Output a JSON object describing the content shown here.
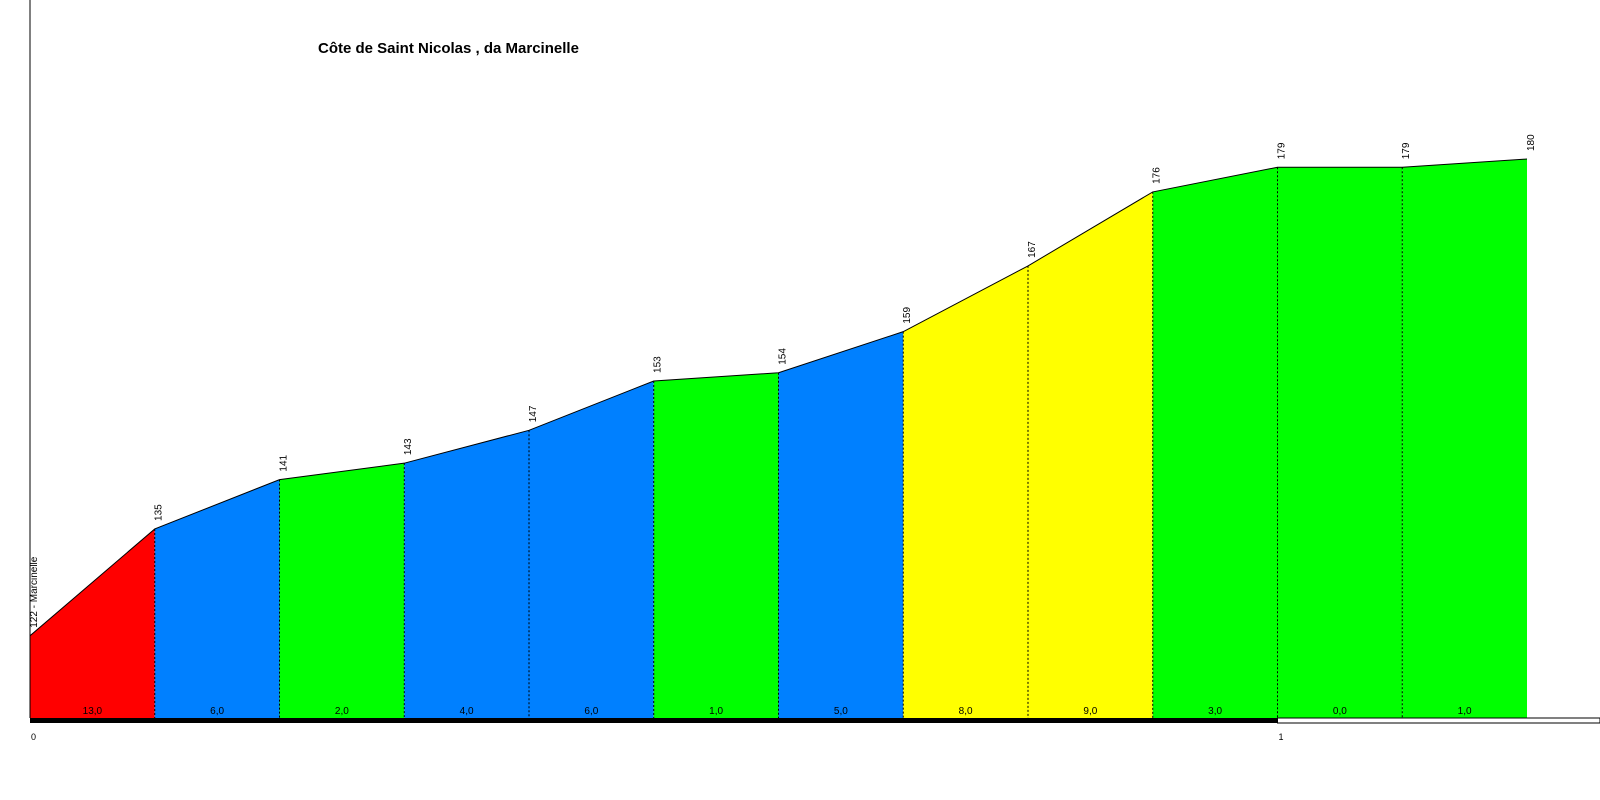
{
  "chart_data": {
    "type": "area",
    "title": "Côte de Saint Nicolas , da Marcinelle",
    "start_label": "Marcinelle",
    "segment_length_km": 0.1,
    "x_km": [
      0,
      0.1,
      0.2,
      0.3,
      0.4,
      0.5,
      0.6,
      0.7,
      0.8,
      0.9,
      1.0,
      1.1,
      1.2
    ],
    "elevations": [
      122,
      135,
      141,
      143,
      147,
      153,
      154,
      159,
      167,
      176,
      179,
      179,
      180
    ],
    "elevation_labels": [
      "122 - Marcinelle",
      "135",
      "141",
      "143",
      "147",
      "153",
      "154",
      "159",
      "167",
      "176",
      "179",
      "179",
      "180"
    ],
    "gradients": [
      13.0,
      6.0,
      2.0,
      4.0,
      6.0,
      1.0,
      5.0,
      8.0,
      9.0,
      3.0,
      0.0,
      1.0
    ],
    "gradient_labels": [
      "13,0",
      "6,0",
      "2,0",
      "4,0",
      "6,0",
      "1,0",
      "5,0",
      "8,0",
      "9,0",
      "3,0",
      "0,0",
      "1,0"
    ],
    "km_ticks": [
      0,
      1
    ],
    "km_tick_labels": [
      "0",
      "1"
    ],
    "gradient_color_scale": [
      {
        "max_gradient": 3,
        "color": "#00ff00"
      },
      {
        "max_gradient": 7,
        "color": "#0080ff"
      },
      {
        "max_gradient": 10,
        "color": "#ffff00"
      },
      {
        "max_gradient": 100,
        "color": "#ff0000"
      }
    ],
    "grid": false
  }
}
